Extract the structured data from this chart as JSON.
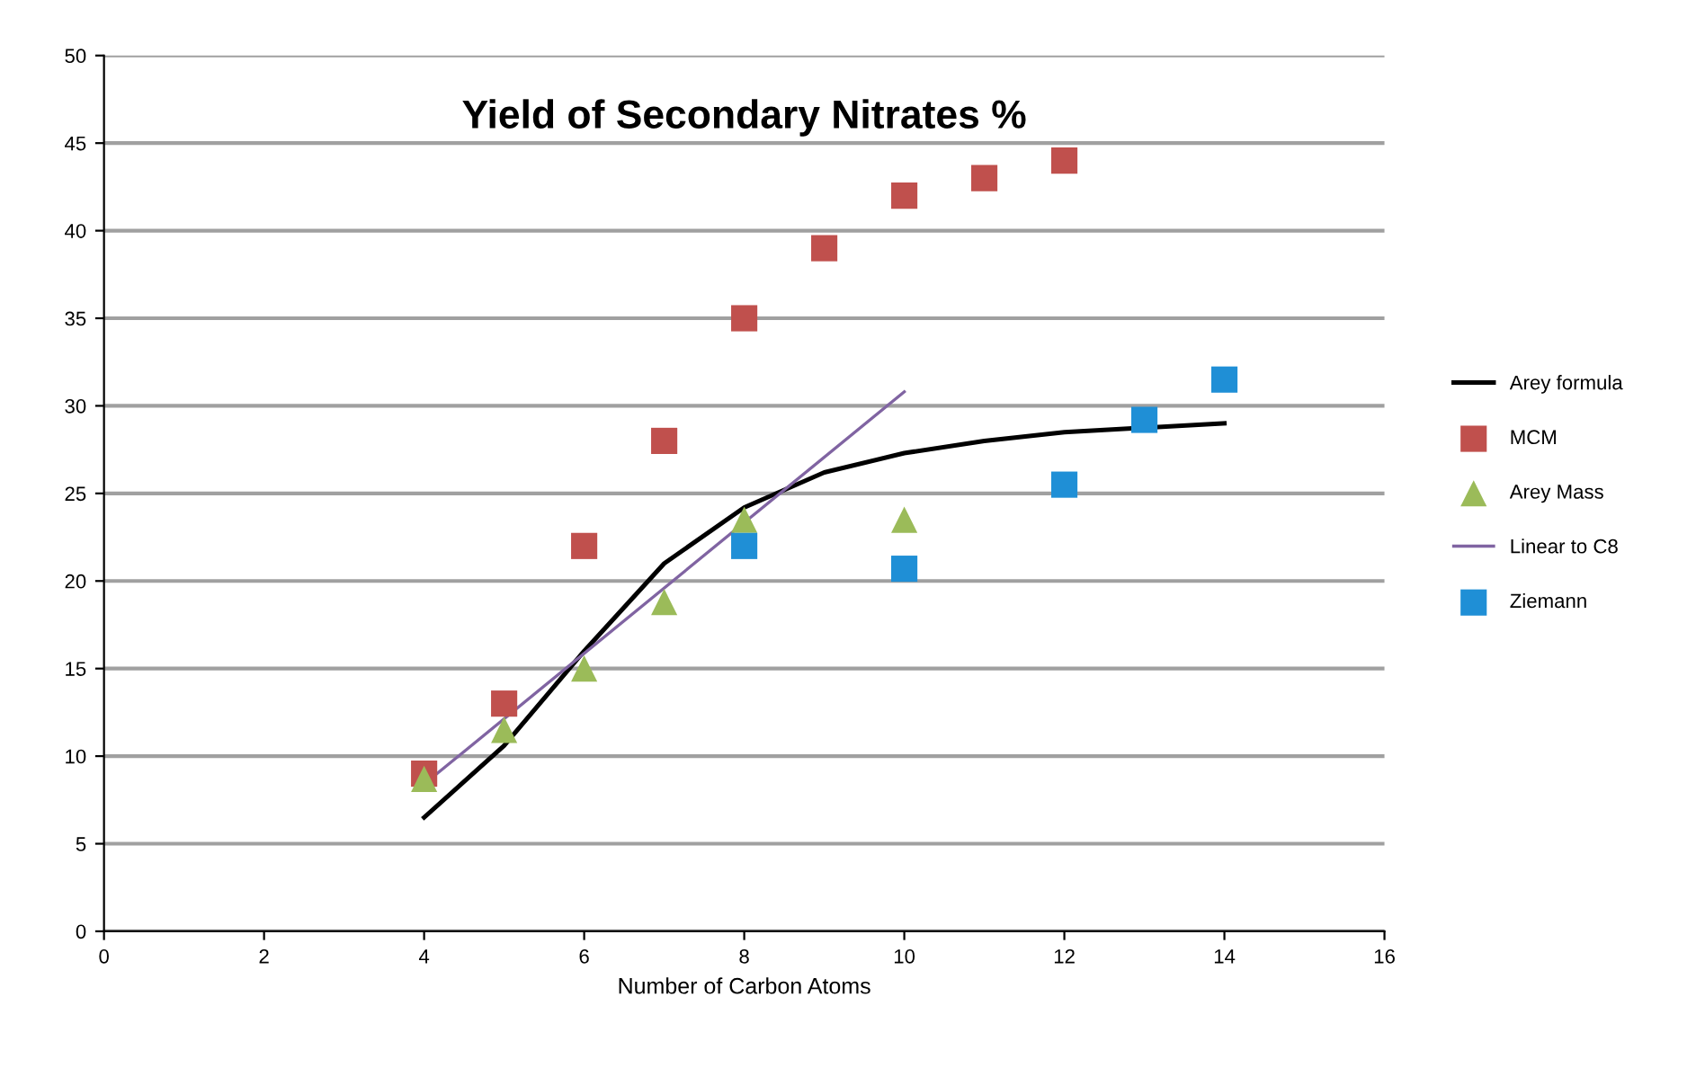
{
  "chart_data": {
    "type": "scatter",
    "title": "Yield of Secondary Nitrates %",
    "xlabel": "Number of Carbon Atoms",
    "xlim": [
      0,
      16
    ],
    "xticks": [
      0,
      2,
      4,
      6,
      8,
      10,
      12,
      14,
      16
    ],
    "ylim": [
      0,
      50
    ],
    "yticks": [
      0,
      5,
      10,
      15,
      20,
      25,
      30,
      35,
      40,
      45,
      50
    ],
    "grid": "y",
    "legend": "right",
    "series": [
      {
        "name": "Arey formula",
        "type": "line",
        "color": "#000000",
        "marker": "none",
        "x": [
          4,
          5,
          6,
          7,
          8,
          9,
          10,
          11,
          12,
          14
        ],
        "values": [
          6.5,
          10.6,
          16,
          21,
          24.2,
          26.2,
          27.3,
          28,
          28.5,
          29
        ]
      },
      {
        "name": "MCM",
        "color": "#c0504d",
        "marker": "square",
        "x": [
          4,
          5,
          6,
          7,
          8,
          9,
          10,
          11,
          12
        ],
        "values": [
          9,
          13,
          22,
          28,
          35,
          39,
          42,
          43,
          44
        ]
      },
      {
        "name": "Arey Mass",
        "color": "#9bbb59",
        "marker": "triangle",
        "x": [
          4,
          5,
          6,
          7,
          8,
          10
        ],
        "values": [
          8.7,
          11.5,
          15,
          18.8,
          23.5,
          23.5
        ]
      },
      {
        "name": "Linear to C8",
        "type": "line",
        "color": "#8064a2",
        "marker": "none",
        "x": [
          4,
          10
        ],
        "values": [
          8.4,
          30.8
        ]
      },
      {
        "name": "Ziemann",
        "color": "#1f8fd6",
        "marker": "square",
        "x": [
          8,
          10,
          12,
          13,
          14
        ],
        "values": [
          22,
          20.7,
          25.5,
          29.2,
          31.5
        ]
      }
    ]
  }
}
